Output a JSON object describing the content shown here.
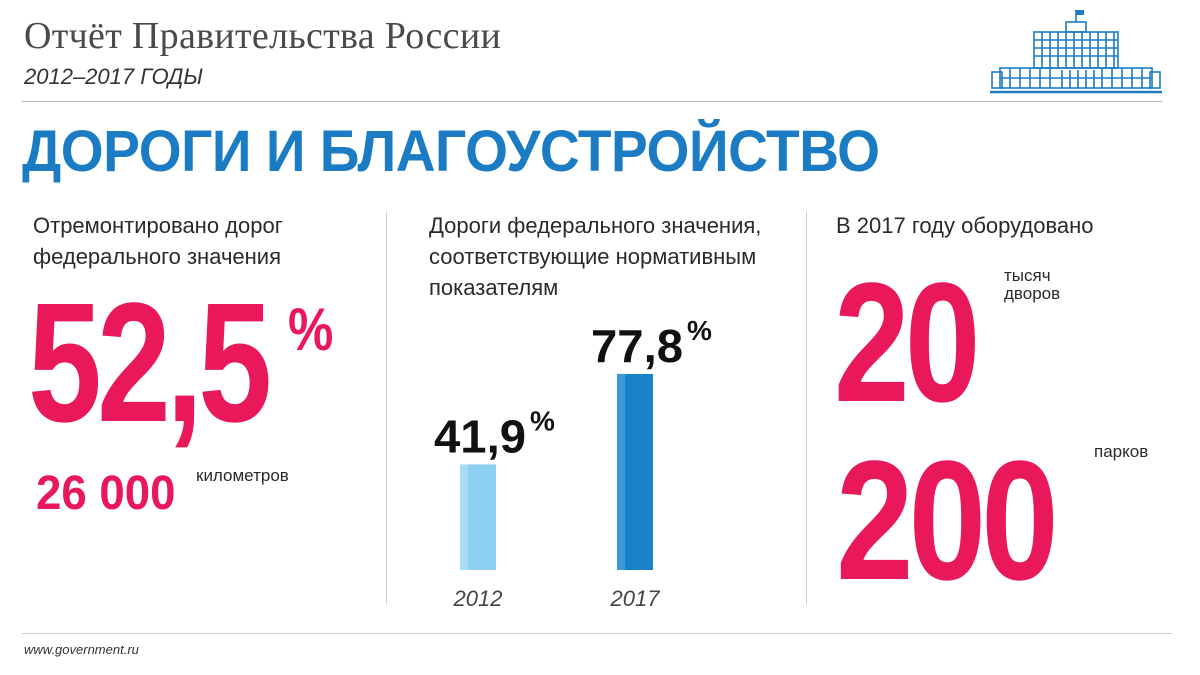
{
  "header": {
    "title": "Отчёт Правительства России",
    "subtitle": "2012–2017 ГОДЫ"
  },
  "section": {
    "title": "ДОРОГИ И БЛАГОУСТРОЙСТВО"
  },
  "col1": {
    "label_line1": "Отремонтировано дорог",
    "label_line2": "федерального значения",
    "big_value": "52,5",
    "big_unit": "%",
    "km_value": "26 000",
    "km_unit": "километров"
  },
  "col2": {
    "label_line1": "Дороги федерального значения,",
    "label_line2": "соответствующие нормативным",
    "label_line3": "показателям"
  },
  "col3": {
    "label": "В 2017 году оборудовано",
    "value1": "20",
    "unit1_line1": "тысяч",
    "unit1_line2": "дворов",
    "value2": "200",
    "unit2": "парков"
  },
  "footer": {
    "site": "www.government.ru"
  },
  "colors": {
    "accent_blue": "#1b7cc4",
    "accent_red": "#e8185b",
    "bar_light": "#8dd0f2",
    "bar_dark": "#1a82c8"
  },
  "chart_data": {
    "type": "bar",
    "title": "Дороги федерального значения, соответствующие нормативным показателям",
    "categories": [
      "2012",
      "2017"
    ],
    "values": [
      41.9,
      77.8
    ],
    "value_labels": [
      "41,9",
      "77,8"
    ],
    "unit": "%",
    "ylim": [
      0,
      100
    ],
    "xlabel": "",
    "ylabel": ""
  }
}
